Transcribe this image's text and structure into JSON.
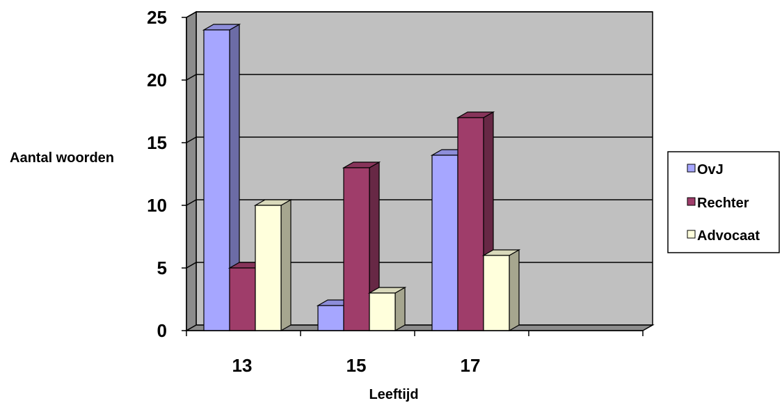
{
  "chart_data": {
    "type": "bar",
    "categories": [
      "13",
      "15",
      "17",
      ""
    ],
    "series": [
      {
        "name": "OvJ",
        "values": [
          24,
          2,
          14,
          null
        ],
        "color": "#a6a6ff"
      },
      {
        "name": "Rechter",
        "values": [
          5,
          13,
          17,
          null
        ],
        "color": "#9f3d6a"
      },
      {
        "name": "Advocaat",
        "values": [
          10,
          3,
          6,
          null
        ],
        "color": "#ffffdc"
      }
    ],
    "xlabel": "Leeftijd",
    "ylabel": "Aantal woorden",
    "ylim": [
      0,
      25
    ],
    "yticks": [
      "0",
      "5",
      "10",
      "15",
      "20",
      "25"
    ],
    "grid": true,
    "legend": "right",
    "style": "3d-clustered-column",
    "wall_color": "#c0c0c0"
  }
}
